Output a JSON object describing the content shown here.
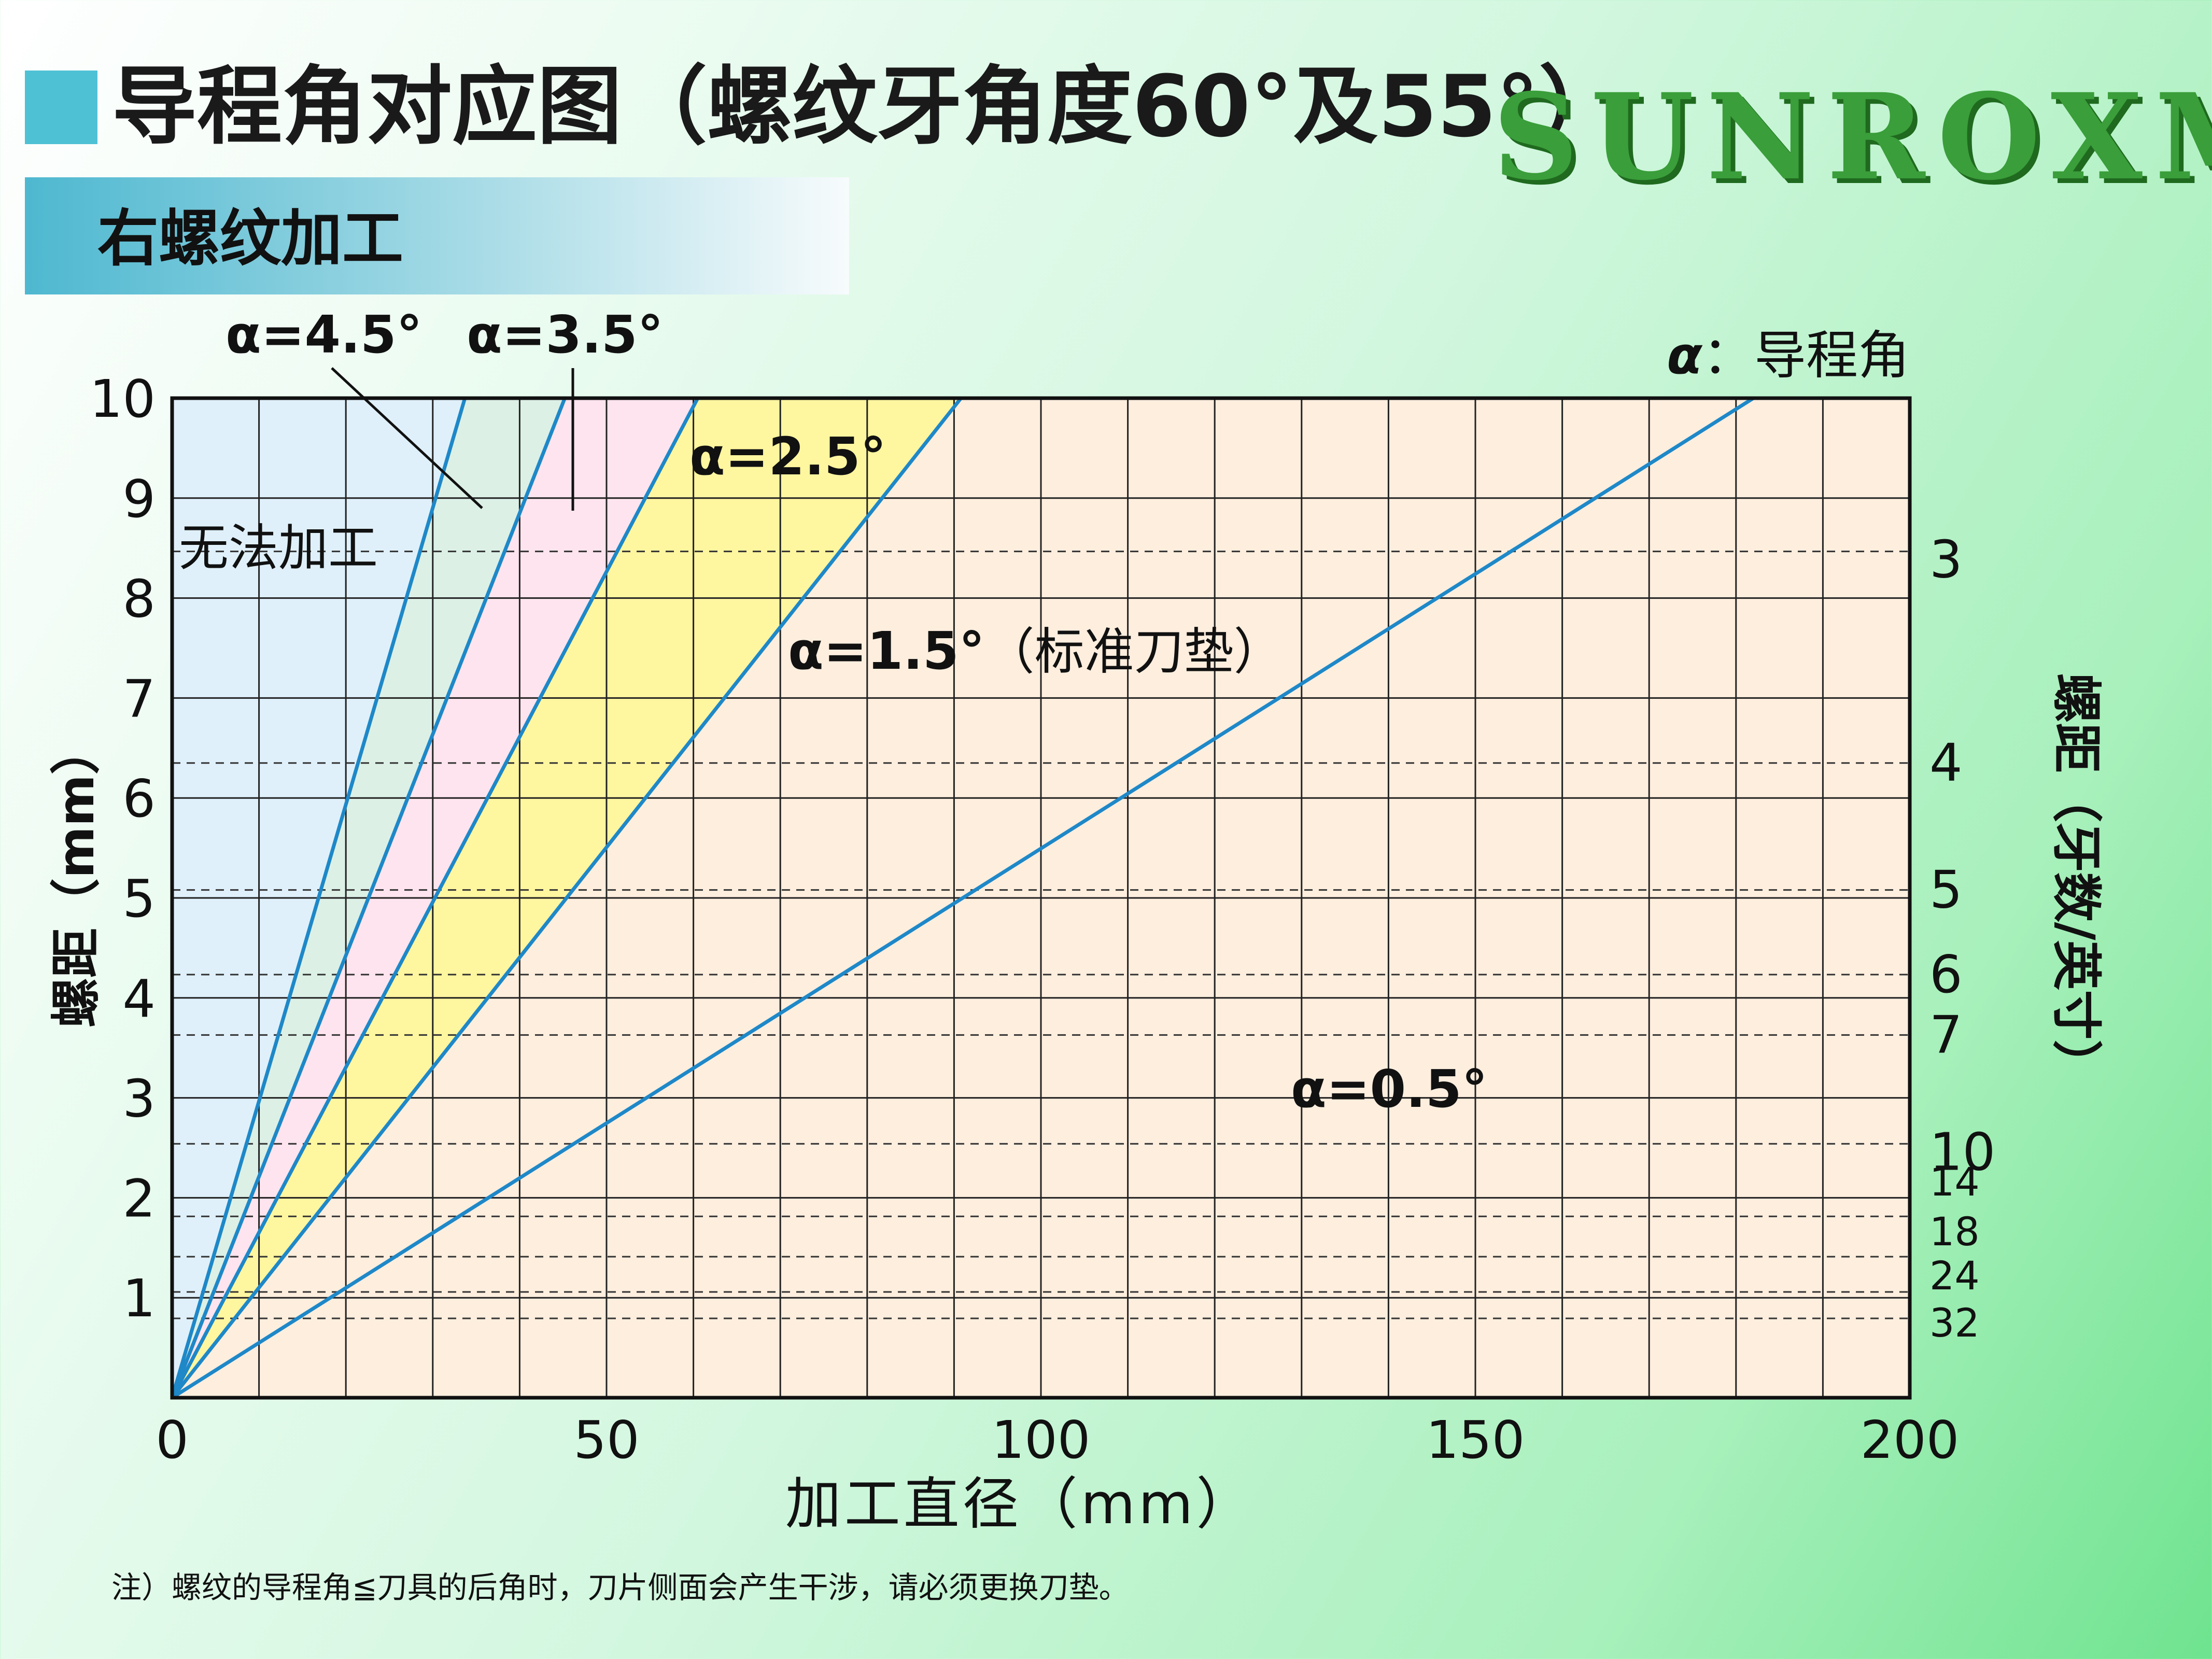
{
  "header": {
    "title": "导程角对应图（螺纹牙角度60°及55°）",
    "logo": "SUNROXM",
    "subtitle": "右螺纹加工"
  },
  "chart_data": {
    "type": "line",
    "xlabel": "加工直径（mm）",
    "ylabel": "螺距（mm）",
    "y2label": "螺距（牙数/英寸）",
    "xlim": [
      0,
      200
    ],
    "ylim": [
      0,
      10
    ],
    "x_ticks": [
      "0",
      "50",
      "100",
      "150",
      "200"
    ],
    "y_ticks": [
      "1",
      "2",
      "3",
      "4",
      "5",
      "6",
      "7",
      "8",
      "9",
      "10"
    ],
    "grid": true,
    "legend": "α：导程角",
    "legend_symbol": "α",
    "legend_text": "：导程角",
    "region_label_impossible": "无法加工",
    "series": [
      {
        "name": "α=4.5°",
        "angle_deg": 4.5,
        "x": [
          0,
          33.7
        ],
        "y": [
          0,
          10
        ],
        "color": "#1e88c8"
      },
      {
        "name": "α=3.5°",
        "angle_deg": 3.5,
        "x": [
          0,
          45.2
        ],
        "y": [
          0,
          10
        ],
        "color": "#1e88c8"
      },
      {
        "name": "α=2.5°",
        "angle_deg": 2.5,
        "x": [
          0,
          60.5
        ],
        "y": [
          0,
          10
        ],
        "color": "#1e88c8"
      },
      {
        "name": "α=1.5°",
        "angle_deg": 1.5,
        "note": "（标准刀垫）",
        "x": [
          0,
          90.8
        ],
        "y": [
          0,
          10
        ],
        "color": "#1e88c8"
      },
      {
        "name": "α=0.5°",
        "angle_deg": 0.5,
        "x": [
          0,
          182.0
        ],
        "y": [
          0,
          10
        ],
        "color": "#1e88c8"
      }
    ],
    "region_colors": [
      "#ffffff",
      "#dff0fa",
      "#dcf0e6",
      "#fde4ee",
      "#fff6a0",
      "#fdeede"
    ],
    "tpi_ticks": [
      {
        "label": "3",
        "tpi": 3
      },
      {
        "label": "4",
        "tpi": 4
      },
      {
        "label": "5",
        "tpi": 5
      },
      {
        "label": "6",
        "tpi": 6
      },
      {
        "label": "7",
        "tpi": 7
      },
      {
        "label": "10",
        "tpi": 10
      },
      {
        "label": "14",
        "tpi": 14
      },
      {
        "label": "18",
        "tpi": 18
      },
      {
        "label": "24",
        "tpi": 24
      },
      {
        "label": "32",
        "tpi": 32
      }
    ]
  },
  "footer": {
    "note": "注）螺纹的导程角≦刀具的后角时，刀片侧面会产生干涉，请必须更换刀垫。"
  }
}
